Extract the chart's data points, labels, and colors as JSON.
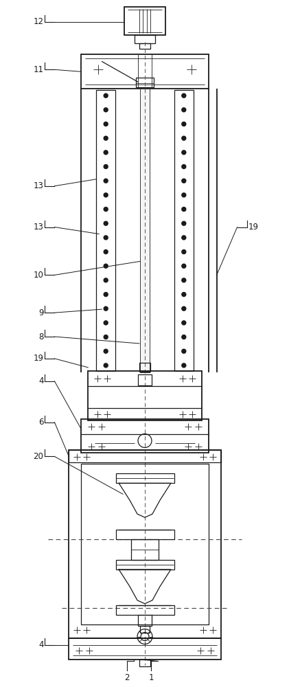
{
  "bg_color": "#ffffff",
  "line_color": "#1a1a1a",
  "fig_width": 4.21,
  "fig_height": 10.0,
  "lw_main": 1.3,
  "lw_med": 0.9,
  "lw_thin": 0.6,
  "lw_dash": 0.7
}
